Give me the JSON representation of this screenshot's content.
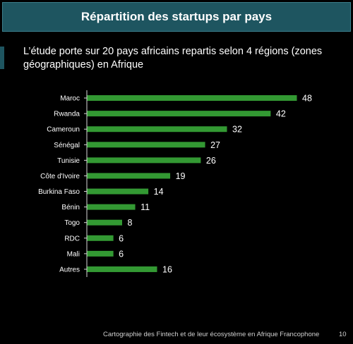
{
  "header": {
    "title": "Répartition des startups par pays"
  },
  "subtitle": "L’étude porte sur 20 pays africains repartis selon 4 régions (zones géographiques) en Afrique",
  "footer": {
    "text": "Cartographie des Fintech et de leur écosystème en Afrique Francophone",
    "page_number": "10"
  },
  "colors": {
    "bar": "#339933",
    "axis": "#d9d9d9",
    "title_bg": "#1e5560"
  },
  "chart_data": {
    "type": "bar",
    "orientation": "horizontal",
    "categories": [
      "Maroc",
      "Rwanda",
      "Cameroun",
      "Sénégal",
      "Tunisie",
      "Côte d'Ivoire",
      "Burkina Faso",
      "Bénin",
      "Togo",
      "RDC",
      "Mali",
      "Autres"
    ],
    "values": [
      48,
      42,
      32,
      27,
      26,
      19,
      14,
      11,
      8,
      6,
      6,
      16
    ],
    "xlim": [
      0,
      48
    ],
    "grid": false,
    "legend": "none"
  }
}
